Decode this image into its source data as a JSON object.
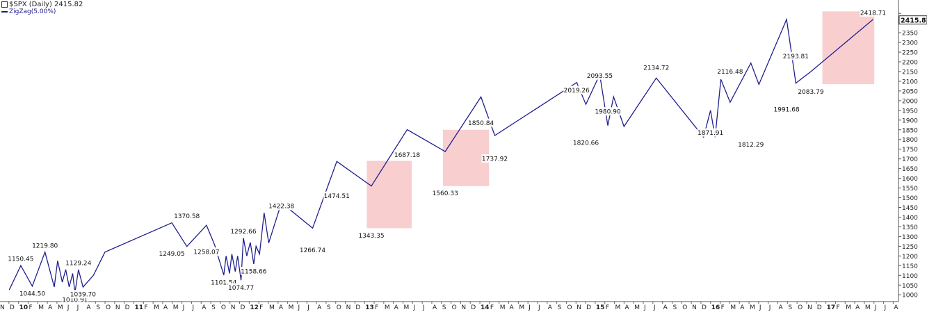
{
  "header": {
    "symbol_title": "$SPX (Daily) 2415.82",
    "indicator_legend": "ZigZag(5.00%)"
  },
  "colors": {
    "line": "#1f1f8f",
    "highlight": "#f7c6c7",
    "grid": "#d8d8d8",
    "last_price_bg": "#ffffff"
  },
  "chart_data": {
    "type": "line",
    "title": "$SPX (Daily) 2415.82",
    "series": [
      {
        "name": "ZigZag(5.00%)",
        "x": [
          2009.92,
          2010.02,
          2010.12,
          2010.23,
          2010.31,
          2010.34,
          2010.38,
          2010.41,
          2010.44,
          2010.47,
          2010.49,
          2010.52,
          2010.56,
          2010.65,
          2010.75,
          2011.33,
          2011.46,
          2011.63,
          2011.7,
          2011.78,
          2011.8,
          2011.83,
          2011.85,
          2011.88,
          2011.9,
          2011.93,
          2011.95,
          2011.98,
          2012.01,
          2012.04,
          2012.06,
          2012.09,
          2012.13,
          2012.17,
          2012.28,
          2012.55,
          2012.76,
          2013.06,
          2013.37,
          2013.7,
          2014.01,
          2014.13,
          2014.84,
          2014.92,
          2015.04,
          2015.11,
          2015.16,
          2015.25,
          2015.53,
          2015.94,
          2016.0,
          2016.04,
          2016.09,
          2016.17,
          2016.35,
          2016.42,
          2016.66,
          2016.74,
          2016.87,
          2017.41
        ],
        "y": [
          1025,
          1150.45,
          1044.5,
          1219.8,
          1040,
          1175,
          1065,
          1130,
          1040,
          1110,
          1010.91,
          1129.24,
          1039.7,
          1100,
          1220,
          1370.58,
          1249.05,
          1358,
          1258.07,
          1101.54,
          1200,
          1110,
          1210,
          1120,
          1200,
          1074.77,
          1292.66,
          1200,
          1270,
          1158.66,
          1250,
          1210,
          1422.38,
          1266.74,
          1474.51,
          1343.35,
          1687.18,
          1560.33,
          1850.84,
          1737.92,
          2019.26,
          1820.66,
          2093.55,
          1980.9,
          2134.72,
          1871.91,
          2020,
          1867,
          2116.48,
          1812.29,
          1950,
          1812,
          2110,
          1991.68,
          2193.81,
          2083.79,
          2418.71,
          2090,
          2150,
          2418.71
        ]
      }
    ],
    "point_labels": [
      {
        "x": 2010.02,
        "y": 1150.45,
        "text": "1150.45",
        "pos": "above"
      },
      {
        "x": 2010.12,
        "y": 1044.5,
        "text": "1044.50",
        "pos": "below"
      },
      {
        "x": 2010.23,
        "y": 1219.8,
        "text": "1219.80",
        "pos": "above"
      },
      {
        "x": 2010.49,
        "y": 1010.91,
        "text": "1010.91",
        "pos": "below"
      },
      {
        "x": 2010.52,
        "y": 1129.24,
        "text": "1129.24",
        "pos": "above"
      },
      {
        "x": 2010.56,
        "y": 1039.7,
        "text": "1039.70",
        "pos": "below"
      },
      {
        "x": 2011.46,
        "y": 1370.58,
        "text": "1370.58",
        "pos": "above"
      },
      {
        "x": 2011.33,
        "y": 1249.05,
        "text": "1249.05",
        "pos": "below"
      },
      {
        "x": 2011.63,
        "y": 1258.07,
        "text": "1258.07",
        "pos": "below"
      },
      {
        "x": 2011.78,
        "y": 1101.54,
        "text": "1101.54",
        "pos": "below"
      },
      {
        "x": 2011.93,
        "y": 1074.77,
        "text": "1074.77",
        "pos": "below"
      },
      {
        "x": 2011.95,
        "y": 1292.66,
        "text": "1292.66",
        "pos": "above"
      },
      {
        "x": 2012.04,
        "y": 1158.66,
        "text": "1158.66",
        "pos": "below"
      },
      {
        "x": 2012.28,
        "y": 1422.38,
        "text": "1422.38",
        "pos": "above"
      },
      {
        "x": 2012.55,
        "y": 1266.74,
        "text": "1266.74",
        "pos": "below"
      },
      {
        "x": 2012.76,
        "y": 1474.51,
        "text": "1474.51",
        "pos": "above"
      },
      {
        "x": 2013.06,
        "y": 1343.35,
        "text": "1343.35",
        "pos": "below"
      },
      {
        "x": 2013.37,
        "y": 1687.18,
        "text": "1687.18",
        "pos": "above"
      },
      {
        "x": 2013.7,
        "y": 1560.33,
        "text": "1560.33",
        "pos": "below"
      },
      {
        "x": 2014.01,
        "y": 1850.84,
        "text": "1850.84",
        "pos": "above"
      },
      {
        "x": 2014.13,
        "y": 1737.92,
        "text": "1737.92",
        "pos": "below"
      },
      {
        "x": 2014.84,
        "y": 2019.26,
        "text": "2019.26",
        "pos": "above"
      },
      {
        "x": 2014.92,
        "y": 1820.66,
        "text": "1820.66",
        "pos": "below"
      },
      {
        "x": 2015.04,
        "y": 2093.55,
        "text": "2093.55",
        "pos": "above"
      },
      {
        "x": 2015.11,
        "y": 1980.9,
        "text": "1980.90",
        "pos": "below"
      },
      {
        "x": 2015.53,
        "y": 2134.72,
        "text": "2134.72",
        "pos": "above"
      },
      {
        "x": 2016.0,
        "y": 1871.91,
        "text": "1871.91",
        "pos": "below"
      },
      {
        "x": 2016.17,
        "y": 2116.48,
        "text": "2116.48",
        "pos": "above"
      },
      {
        "x": 2016.35,
        "y": 1812.29,
        "text": "1812.29",
        "pos": "below"
      },
      {
        "x": 2016.66,
        "y": 1991.68,
        "text": "1991.68",
        "pos": "below"
      },
      {
        "x": 2016.74,
        "y": 2193.81,
        "text": "2193.81",
        "pos": "above"
      },
      {
        "x": 2016.87,
        "y": 2083.79,
        "text": "2083.79",
        "pos": "below"
      },
      {
        "x": 2017.41,
        "y": 2418.71,
        "text": "2418.71",
        "pos": "above"
      }
    ],
    "highlight_boxes": [
      {
        "x0": 2013.02,
        "x1": 2013.41,
        "y0": 1343,
        "y1": 1690
      },
      {
        "x0": 2013.68,
        "x1": 2014.08,
        "y0": 1560,
        "y1": 1850
      },
      {
        "x0": 2016.97,
        "x1": 2017.42,
        "y0": 2085,
        "y1": 2460
      }
    ],
    "last_price": "2415.82",
    "xlim": [
      2009.84,
      2017.63
    ],
    "ylim": [
      965,
      2490
    ],
    "y_ticks": [
      1000,
      1050,
      1100,
      1150,
      1200,
      1250,
      1300,
      1350,
      1400,
      1450,
      1500,
      1550,
      1600,
      1650,
      1700,
      1750,
      1800,
      1850,
      1900,
      1950,
      2000,
      2050,
      2100,
      2150,
      2200,
      2250,
      2300,
      2350,
      2400,
      2450
    ],
    "y_tick_labels_hidden": [
      2400,
      2450
    ],
    "x_tick_labels": [
      "N",
      "D",
      "10",
      "F",
      "M",
      "A",
      "M",
      "J",
      "J",
      "A",
      "S",
      "O",
      "N",
      "D",
      "11",
      "F",
      "M",
      "A",
      "M",
      "J",
      "J",
      "A",
      "S",
      "O",
      "N",
      "D",
      "12",
      "F",
      "M",
      "A",
      "M",
      "J",
      "J",
      "A",
      "S",
      "O",
      "N",
      "D",
      "13",
      "F",
      "M",
      "A",
      "M",
      "J",
      "J",
      "A",
      "S",
      "O",
      "N",
      "D",
      "14",
      "F",
      "M",
      "A",
      "M",
      "J",
      "J",
      "A",
      "S",
      "O",
      "N",
      "D",
      "15",
      "F",
      "M",
      "A",
      "M",
      "J",
      "J",
      "A",
      "S",
      "O",
      "N",
      "D",
      "16",
      "F",
      "M",
      "A",
      "M",
      "J",
      "J",
      "A",
      "S",
      "O",
      "N",
      "D",
      "17",
      "F",
      "M",
      "A",
      "M",
      "J",
      "J",
      "A"
    ],
    "x_tick_start": 2009.834,
    "year_labels": [
      "10",
      "11",
      "12",
      "13",
      "14",
      "15",
      "16",
      "17"
    ],
    "grid": false,
    "y_axis_side": "right"
  }
}
